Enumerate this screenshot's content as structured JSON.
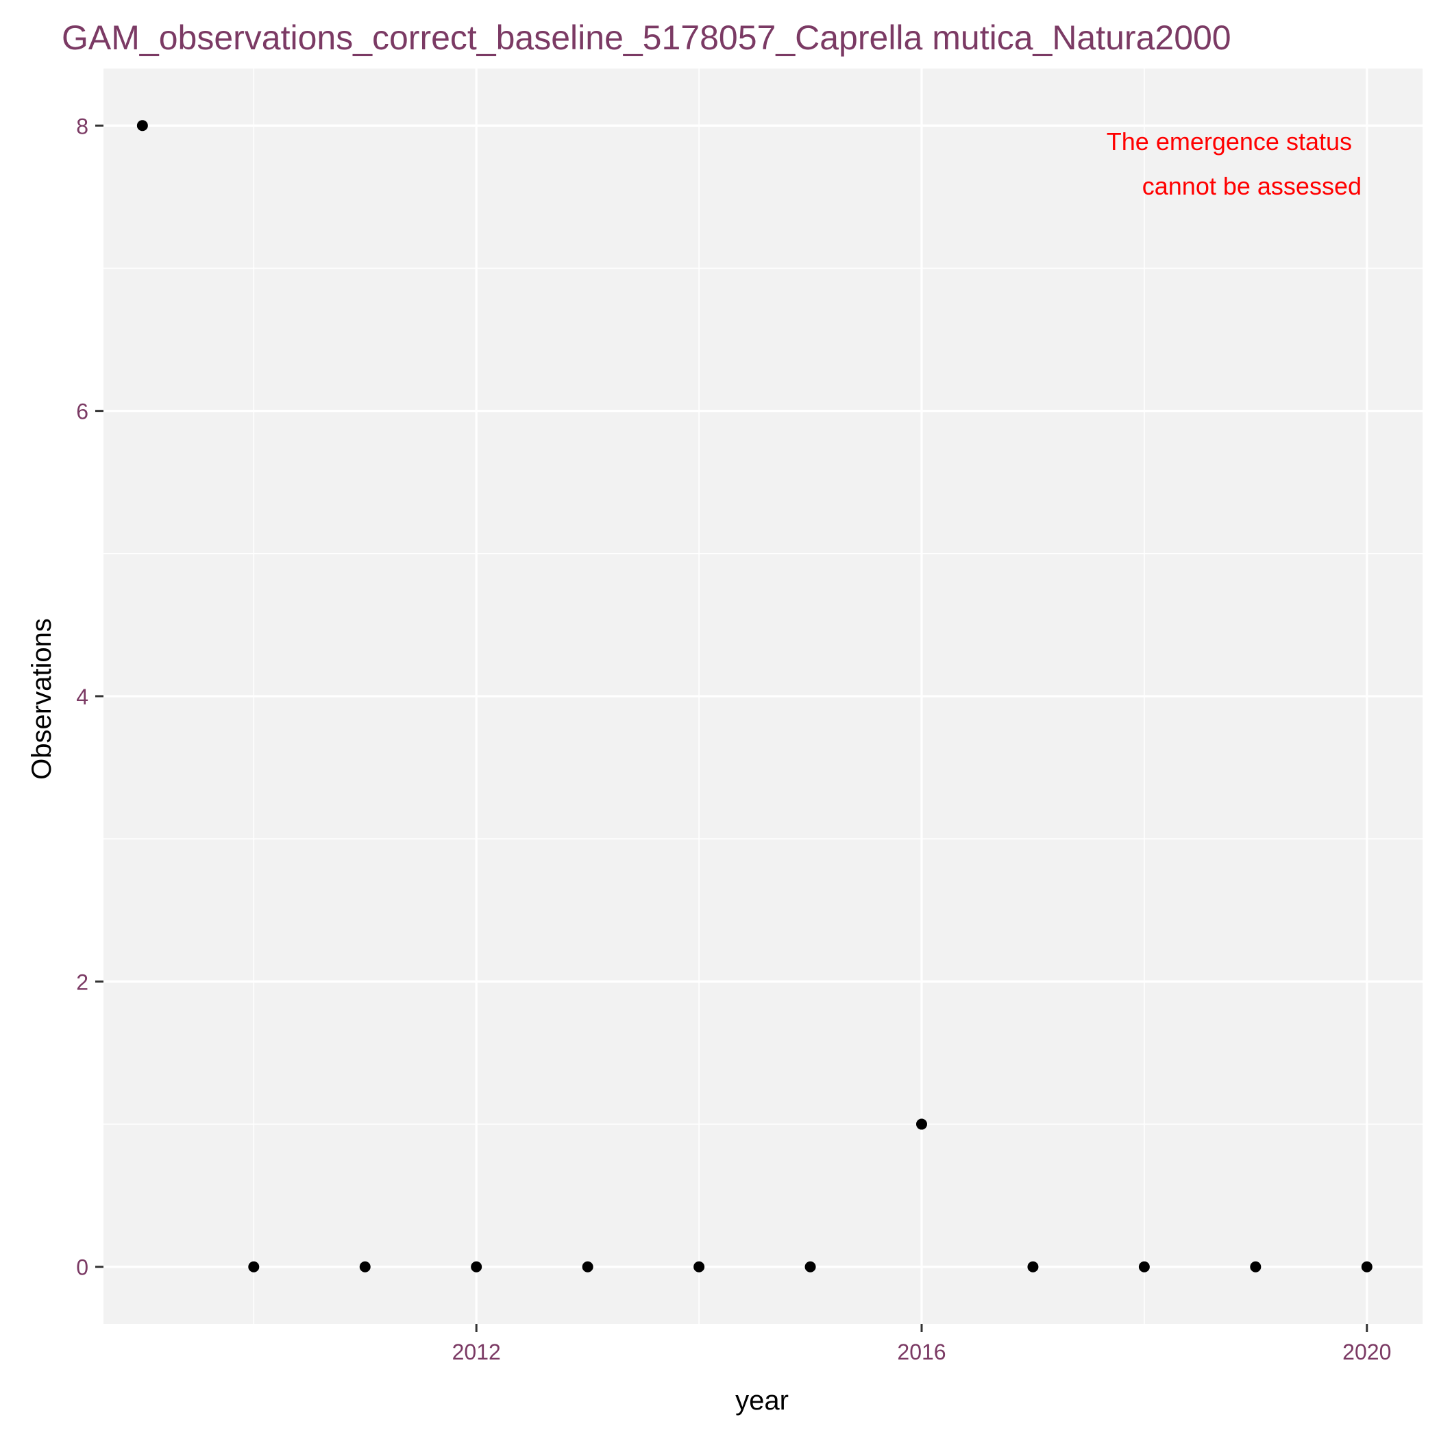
{
  "chart_data": {
    "type": "scatter",
    "title": "GAM_observations_correct_baseline_5178057_Caprella mutica_Natura2000",
    "xlabel": "year",
    "ylabel": "Observations",
    "xlim": [
      2008.65,
      2020.5
    ],
    "ylim": [
      -0.4,
      8.4
    ],
    "x_ticks": [
      2012,
      2016,
      2020
    ],
    "y_ticks": [
      0,
      2,
      4,
      6,
      8
    ],
    "grid": true,
    "x": [
      2009,
      2010,
      2011,
      2012,
      2013,
      2014,
      2015,
      2016,
      2017,
      2018,
      2019,
      2020
    ],
    "y": [
      8,
      0,
      0,
      0,
      0,
      0,
      0,
      1,
      0,
      0,
      0,
      0
    ],
    "annotation": [
      "The emergence status",
      "cannot be assessed"
    ],
    "colors": {
      "panel": "#f2f2f2",
      "grid": "#ffffff",
      "points": "#000000",
      "title": "#7b3a64",
      "annotation": "#ff0000"
    }
  }
}
